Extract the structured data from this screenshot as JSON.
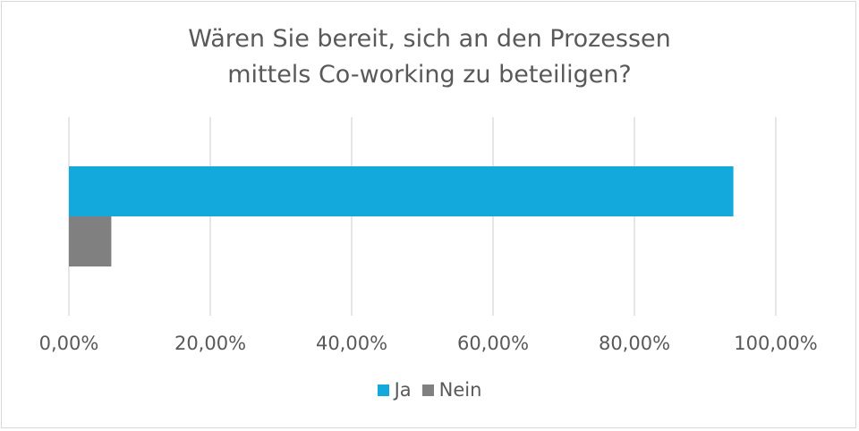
{
  "chart_data": {
    "type": "bar",
    "orientation": "horizontal",
    "title_lines": [
      "Wären Sie bereit, sich an den Prozessen",
      "mittels Co-working zu beteiligen?"
    ],
    "xlim": [
      0,
      1
    ],
    "xticks": [
      {
        "value": 0,
        "label": "0,00%"
      },
      {
        "value": 0.2,
        "label": "20,00%"
      },
      {
        "value": 0.4,
        "label": "40,00%"
      },
      {
        "value": 0.6,
        "label": "60,00%"
      },
      {
        "value": 0.8,
        "label": "80,00%"
      },
      {
        "value": 1.0,
        "label": "100,00%"
      }
    ],
    "grid": "vertical",
    "legend_position": "bottom",
    "series": [
      {
        "name": "Ja",
        "color": "#13a9dc",
        "value": 0.94
      },
      {
        "name": "Nein",
        "color": "#808080",
        "value": 0.06
      }
    ]
  }
}
